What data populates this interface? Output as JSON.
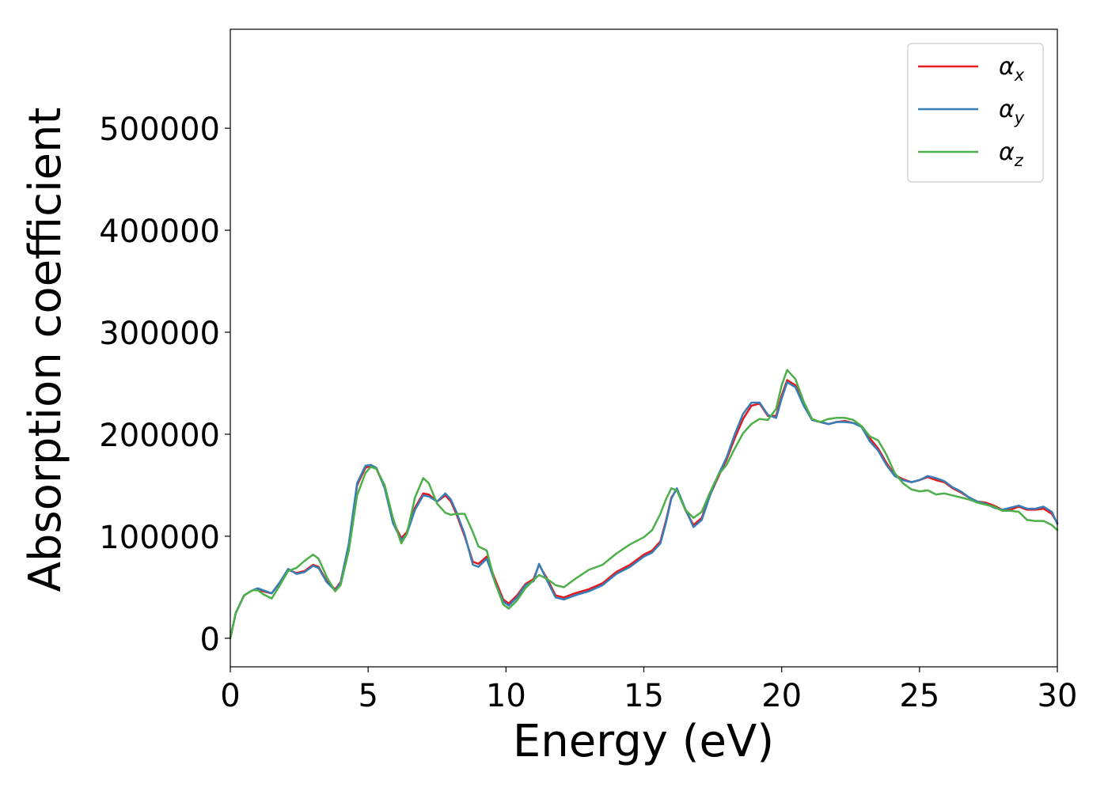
{
  "chart_data": {
    "type": "line",
    "xlabel": "Energy (eV)",
    "ylabel": "Absorption coefficient",
    "xlim": [
      0,
      30
    ],
    "ylim": [
      -28000,
      597000
    ],
    "xticks": [
      "0",
      "5",
      "10",
      "15",
      "20",
      "25",
      "30"
    ],
    "yticks": [
      "0",
      "100000",
      "200000",
      "300000",
      "400000",
      "500000"
    ],
    "grid": false,
    "legend_position": "top-right",
    "series": [
      {
        "name": "αx",
        "symbol": "α",
        "subscript": "x",
        "color": "#e41a1c",
        "x": [
          0,
          0.2,
          0.5,
          0.8,
          1.0,
          1.2,
          1.5,
          1.8,
          2.1,
          2.4,
          2.7,
          3.0,
          3.2,
          3.5,
          3.8,
          4.0,
          4.3,
          4.6,
          4.9,
          5.1,
          5.3,
          5.6,
          5.9,
          6.2,
          6.4,
          6.7,
          7.0,
          7.2,
          7.5,
          7.8,
          8.0,
          8.2,
          8.5,
          8.8,
          9.0,
          9.3,
          9.6,
          9.9,
          10.1,
          10.4,
          10.7,
          11.0,
          11.2,
          11.5,
          11.8,
          12.1,
          12.5,
          13.0,
          13.5,
          14.0,
          14.5,
          15.0,
          15.3,
          15.6,
          15.8,
          16.0,
          16.2,
          16.5,
          16.8,
          17.1,
          17.4,
          17.7,
          18.0,
          18.3,
          18.6,
          18.9,
          19.2,
          19.5,
          19.8,
          20.0,
          20.2,
          20.5,
          20.8,
          21.1,
          21.4,
          21.7,
          22.0,
          22.3,
          22.6,
          22.9,
          23.2,
          23.5,
          23.8,
          24.1,
          24.4,
          24.7,
          25.0,
          25.3,
          25.6,
          25.9,
          26.2,
          26.5,
          26.8,
          27.1,
          27.4,
          27.7,
          28.0,
          28.3,
          28.6,
          28.9,
          29.2,
          29.5,
          29.8,
          30.0
        ],
        "values": [
          0,
          25000,
          42000,
          47000,
          48000,
          46000,
          44000,
          55000,
          67000,
          64000,
          66000,
          72000,
          70000,
          56000,
          48000,
          55000,
          92000,
          150000,
          167000,
          169000,
          166000,
          148000,
          115000,
          98000,
          104000,
          128000,
          142000,
          141000,
          134000,
          140000,
          134000,
          122000,
          100000,
          75000,
          73000,
          80000,
          58000,
          38000,
          34000,
          42000,
          53000,
          58000,
          72000,
          58000,
          42000,
          40000,
          44000,
          48000,
          54000,
          65000,
          72000,
          82000,
          86000,
          95000,
          115000,
          138000,
          146000,
          126000,
          111000,
          118000,
          140000,
          158000,
          175000,
          196000,
          215000,
          228000,
          230000,
          218000,
          218000,
          238000,
          253000,
          248000,
          230000,
          214000,
          212000,
          210000,
          212000,
          213000,
          211000,
          208000,
          196000,
          186000,
          172000,
          160000,
          156000,
          153000,
          155000,
          158000,
          155000,
          153000,
          147000,
          143000,
          138000,
          134000,
          133000,
          130000,
          126000,
          126000,
          129000,
          126000,
          126000,
          127000,
          122000,
          113000
        ]
      },
      {
        "name": "αy",
        "symbol": "α",
        "subscript": "y",
        "color": "#377eb8",
        "x": [
          0,
          0.2,
          0.5,
          0.8,
          1.0,
          1.2,
          1.5,
          1.8,
          2.1,
          2.4,
          2.7,
          3.0,
          3.2,
          3.5,
          3.8,
          4.0,
          4.3,
          4.6,
          4.9,
          5.1,
          5.3,
          5.6,
          5.9,
          6.2,
          6.4,
          6.7,
          7.0,
          7.2,
          7.5,
          7.8,
          8.0,
          8.2,
          8.5,
          8.8,
          9.0,
          9.3,
          9.6,
          9.9,
          10.1,
          10.4,
          10.7,
          11.0,
          11.2,
          11.5,
          11.8,
          12.1,
          12.5,
          13.0,
          13.5,
          14.0,
          14.5,
          15.0,
          15.3,
          15.6,
          15.8,
          16.0,
          16.2,
          16.5,
          16.8,
          17.1,
          17.4,
          17.7,
          18.0,
          18.3,
          18.6,
          18.9,
          19.2,
          19.5,
          19.8,
          20.0,
          20.2,
          20.5,
          20.8,
          21.1,
          21.4,
          21.7,
          22.0,
          22.3,
          22.6,
          22.9,
          23.2,
          23.5,
          23.8,
          24.1,
          24.4,
          24.7,
          25.0,
          25.3,
          25.6,
          25.9,
          26.2,
          26.5,
          26.8,
          27.1,
          27.4,
          27.7,
          28.0,
          28.3,
          28.6,
          28.9,
          29.2,
          29.5,
          29.8,
          30.0
        ],
        "values": [
          0,
          25000,
          42000,
          47000,
          49000,
          47000,
          44000,
          55000,
          68000,
          63000,
          65000,
          71000,
          69000,
          55000,
          47000,
          54000,
          93000,
          152000,
          169000,
          170000,
          167000,
          147000,
          113000,
          96000,
          102000,
          126000,
          140000,
          139000,
          134000,
          142000,
          136000,
          124000,
          102000,
          72000,
          70000,
          78000,
          55000,
          36000,
          32000,
          40000,
          52000,
          56000,
          73000,
          56000,
          40000,
          38000,
          42000,
          46000,
          52000,
          63000,
          70000,
          80000,
          84000,
          93000,
          113000,
          137000,
          147000,
          127000,
          109000,
          116000,
          140000,
          160000,
          177000,
          200000,
          220000,
          231000,
          231000,
          219000,
          216000,
          235000,
          251000,
          246000,
          228000,
          214000,
          212000,
          210000,
          212000,
          212000,
          211000,
          207000,
          193000,
          184000,
          170000,
          159000,
          155000,
          153000,
          155000,
          159000,
          157000,
          154000,
          148000,
          144000,
          138000,
          134000,
          132000,
          128000,
          126000,
          128000,
          130000,
          127000,
          127000,
          129000,
          124000,
          112000
        ]
      },
      {
        "name": "αz",
        "symbol": "α",
        "subscript": "z",
        "color": "#4daf4a",
        "x": [
          0,
          0.2,
          0.5,
          0.8,
          1.0,
          1.2,
          1.5,
          1.8,
          2.1,
          2.4,
          2.7,
          3.0,
          3.2,
          3.5,
          3.8,
          4.0,
          4.3,
          4.6,
          4.9,
          5.1,
          5.3,
          5.6,
          5.9,
          6.2,
          6.4,
          6.7,
          7.0,
          7.2,
          7.5,
          7.8,
          8.0,
          8.2,
          8.5,
          8.8,
          9.0,
          9.3,
          9.6,
          9.9,
          10.1,
          10.4,
          10.7,
          11.0,
          11.2,
          11.5,
          11.8,
          12.1,
          12.5,
          13.0,
          13.5,
          14.0,
          14.5,
          15.0,
          15.3,
          15.6,
          15.8,
          16.0,
          16.2,
          16.5,
          16.8,
          17.1,
          17.4,
          17.7,
          18.0,
          18.3,
          18.6,
          18.9,
          19.2,
          19.5,
          19.8,
          20.0,
          20.2,
          20.5,
          20.8,
          21.1,
          21.4,
          21.7,
          22.0,
          22.3,
          22.6,
          22.9,
          23.2,
          23.5,
          23.8,
          24.1,
          24.4,
          24.7,
          25.0,
          25.3,
          25.6,
          25.9,
          26.2,
          26.5,
          26.8,
          27.1,
          27.4,
          27.7,
          28.0,
          28.3,
          28.6,
          28.9,
          29.2,
          29.5,
          29.8,
          30.0
        ],
        "values": [
          0,
          25000,
          42000,
          47000,
          47000,
          43000,
          39000,
          52000,
          66000,
          69000,
          76000,
          82000,
          78000,
          60000,
          46000,
          52000,
          86000,
          140000,
          162000,
          168000,
          166000,
          150000,
          118000,
          93000,
          102000,
          138000,
          157000,
          152000,
          132000,
          123000,
          121000,
          122000,
          122000,
          104000,
          90000,
          86000,
          55000,
          33000,
          29000,
          37000,
          49000,
          57000,
          62000,
          58000,
          52000,
          50000,
          58000,
          67000,
          72000,
          83000,
          92000,
          99000,
          106000,
          122000,
          136000,
          147000,
          145000,
          126000,
          118000,
          124000,
          143000,
          160000,
          170000,
          186000,
          201000,
          210000,
          215000,
          214000,
          225000,
          248000,
          263000,
          254000,
          232000,
          215000,
          212000,
          215000,
          216000,
          216000,
          214000,
          208000,
          198000,
          194000,
          180000,
          162000,
          152000,
          146000,
          144000,
          145000,
          141000,
          142000,
          140000,
          138000,
          136000,
          133000,
          131000,
          129000,
          125000,
          125000,
          124000,
          116000,
          115000,
          115000,
          111000,
          106000
        ]
      }
    ]
  }
}
